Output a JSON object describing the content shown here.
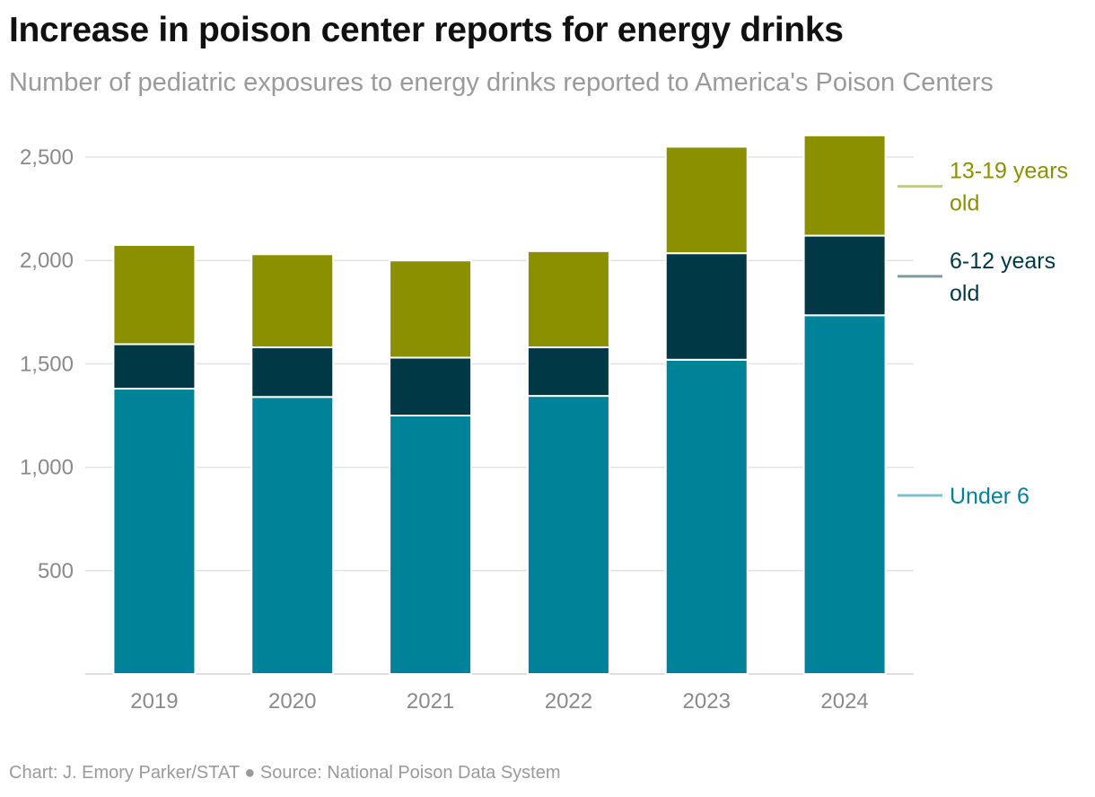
{
  "chart_data": {
    "type": "bar",
    "stacked": true,
    "title": "Increase in poison center reports for energy drinks",
    "subtitle": "Number of pediatric exposures to energy drinks reported to America's Poison Centers",
    "footer": "Chart: J. Emory Parker/STAT ● Source: National Poison Data System",
    "categories": [
      "2019",
      "2020",
      "2021",
      "2022",
      "2023",
      "2024"
    ],
    "series": [
      {
        "name": "Under 6",
        "label_lines": [
          "Under 6"
        ],
        "color": "#008298",
        "legend_line_color": "#7dbfcc",
        "values": [
          1380,
          1340,
          1250,
          1345,
          1520,
          1735
        ]
      },
      {
        "name": "6-12 years old",
        "label_lines": [
          "6-12 years",
          "old"
        ],
        "color": "#003845",
        "legend_line_color": "#7f9ba2",
        "values": [
          215,
          240,
          280,
          235,
          515,
          385
        ]
      },
      {
        "name": "13-19 years old",
        "label_lines": [
          "13-19 years",
          "old"
        ],
        "color": "#8b9000",
        "legend_line_color": "#c5c78a",
        "values": [
          480,
          450,
          470,
          465,
          515,
          485
        ]
      }
    ],
    "yticks": [
      500,
      1000,
      1500,
      2000,
      2500
    ],
    "ylim": [
      0,
      2500
    ],
    "grid": true,
    "legend_position": "right"
  }
}
